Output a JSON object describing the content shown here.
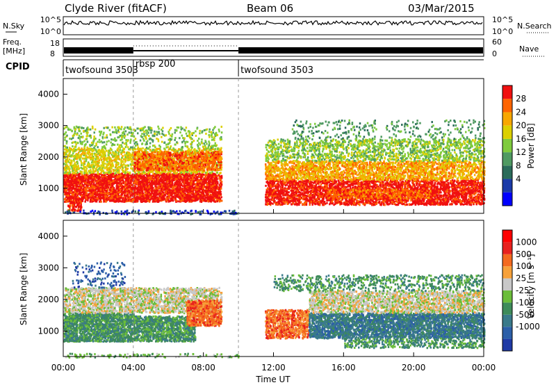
{
  "header": {
    "station": "Clyde River (fitACF)",
    "beam": "Beam 06",
    "date": "03/Mar/2015"
  },
  "nsky_panel": {
    "left_label": "N.Sky",
    "right_label": "N.Search",
    "y_ticks": [
      "10^5",
      "10^0"
    ],
    "right_ticks": [
      "10^5",
      "10^0"
    ]
  },
  "freq_panel": {
    "left_label_line1": "Freq.",
    "left_label_line2": "[MHz]",
    "right_label": "Nave",
    "y_ticks": [
      "18",
      "8"
    ],
    "right_ticks": [
      "60",
      "0"
    ]
  },
  "cpid_panel": {
    "label": "CPID",
    "segments": [
      {
        "name": "twofsound 3503",
        "start_hour": 0
      },
      {
        "name": "rbsp 200",
        "start_hour": 4
      },
      {
        "name": "twofsound 3503",
        "start_hour": 10
      }
    ]
  },
  "chart_data": [
    {
      "type": "heatmap",
      "panel": "power",
      "x_range_hours": [
        0,
        24
      ],
      "ylabel": "Slant Range [km]",
      "y_ticks": [
        "4000",
        "3000",
        "2000",
        "1000"
      ],
      "ylim": [
        200,
        4500
      ],
      "colorbar_label": "Power [dB]",
      "colorbar_ticks": [
        "28",
        "24",
        "20",
        "16",
        "12",
        "8",
        "4"
      ],
      "colors": [
        "#0000ff",
        "#1a3aa8",
        "#2a6b5a",
        "#4f9a62",
        "#7fcb3d",
        "#dcd000",
        "#f8a700",
        "#ff6400",
        "#f01010"
      ]
    },
    {
      "type": "heatmap",
      "panel": "velocity",
      "x_range_hours": [
        0,
        24
      ],
      "ylabel": "Slant Range [km]",
      "y_ticks": [
        "4000",
        "3000",
        "2000",
        "1000"
      ],
      "ylim": [
        200,
        4500
      ],
      "xlabel": "Time UT",
      "x_ticks": [
        "00:00",
        "04:00",
        "08:00",
        "12:00",
        "16:00",
        "20:00",
        "00:00"
      ],
      "colorbar_label": "Velocity [m s⁻¹]",
      "colorbar_ticks": [
        "1000",
        "500",
        "100",
        "25",
        "-25",
        "-100",
        "-500",
        "-1000"
      ],
      "colors": [
        "#1f3aa5",
        "#2c5fa8",
        "#3a7a8a",
        "#3e8b5a",
        "#6bbd3a",
        "#c8c8c8",
        "#f7a13a",
        "#f46a1f",
        "#e8211e",
        "#ff0000"
      ]
    }
  ]
}
